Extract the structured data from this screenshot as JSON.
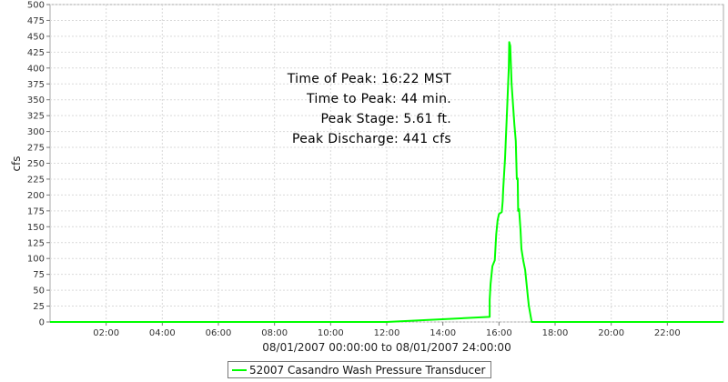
{
  "chart_data": {
    "type": "line",
    "xlabel": "08/01/2007 00:00:00 to 08/01/2007 24:00:00",
    "ylabel": "cfs",
    "xlim": [
      "00:00",
      "24:00"
    ],
    "ylim": [
      0,
      500
    ],
    "grid": true,
    "legend_position": "bottom-center",
    "x_ticks": [
      "02:00",
      "04:00",
      "06:00",
      "08:00",
      "10:00",
      "12:00",
      "14:00",
      "16:00",
      "18:00",
      "20:00",
      "22:00"
    ],
    "y_ticks": [
      "0",
      "25",
      "50",
      "75",
      "100",
      "125",
      "150",
      "175",
      "200",
      "225",
      "250",
      "275",
      "300",
      "325",
      "350",
      "375",
      "400",
      "425",
      "450",
      "475",
      "500"
    ],
    "series": [
      {
        "name": "52007 Casandro Wash Pressure Transducer",
        "color": "#00ff00",
        "x": [
          "00:00",
          "12:00",
          "15:40",
          "15:40",
          "15:42",
          "15:46",
          "15:51",
          "15:54",
          "15:57",
          "16:00",
          "16:06",
          "16:08",
          "16:09",
          "16:13",
          "16:17",
          "16:21",
          "16:22",
          "16:24",
          "16:27",
          "16:33",
          "16:36",
          "16:38",
          "16:40",
          "16:41",
          "16:43",
          "16:46",
          "16:48",
          "16:52",
          "16:56",
          "17:02",
          "17:04",
          "17:10",
          "24:00"
        ],
        "y": [
          0,
          0,
          8,
          35,
          60,
          88,
          97,
          138,
          160,
          170,
          173,
          190,
          210,
          258,
          330,
          400,
          441,
          435,
          375,
          310,
          285,
          225,
          226,
          175,
          178,
          145,
          115,
          96,
          82,
          38,
          25,
          0,
          0
        ]
      }
    ],
    "annotations": [
      "Time of Peak: 16:22 MST",
      "Time to Peak: 44 min.",
      "Peak Stage: 5.61 ft.",
      "Peak Discharge: 441 cfs"
    ]
  }
}
